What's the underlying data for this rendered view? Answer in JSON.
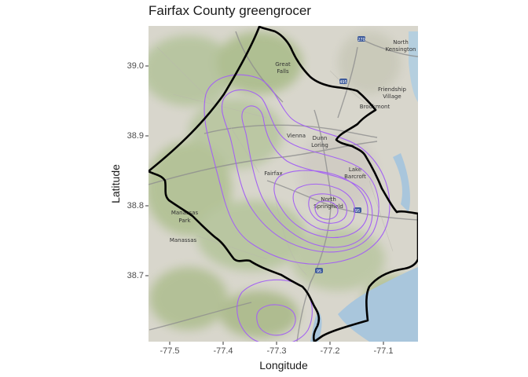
{
  "title": "Fairfax County greengrocer",
  "axes": {
    "x": {
      "label": "Longitude",
      "ticks": [
        "-77.5",
        "-77.4",
        "-77.3",
        "-77.2",
        "-77.1"
      ]
    },
    "y": {
      "label": "Latitude",
      "ticks": [
        "39.0",
        "38.9",
        "38.8",
        "38.7"
      ]
    }
  },
  "basemap_labels": {
    "great_falls": "Great Falls",
    "north_kensington": "North Kensington",
    "friendship_village": "Friendship Village",
    "brookmont": "Brookmont",
    "vienna": "Vienna",
    "dunn_loring": "Dunn Loring",
    "fairfax": "Fairfax",
    "lake_barcroft": "Lake Barcroft",
    "north_springfield": "North Springfield",
    "manassas_park": "Manassas Park",
    "manassas": "Manassas",
    "highway_270": "270",
    "highway_495": "495",
    "highway_95": "95",
    "highway_66": "66"
  },
  "colors": {
    "contour": "#a463f2",
    "boundary": "#000000",
    "water": "#a9c6dc",
    "land_green": "#a8b98a",
    "land_urban": "#d9d5cf"
  }
}
